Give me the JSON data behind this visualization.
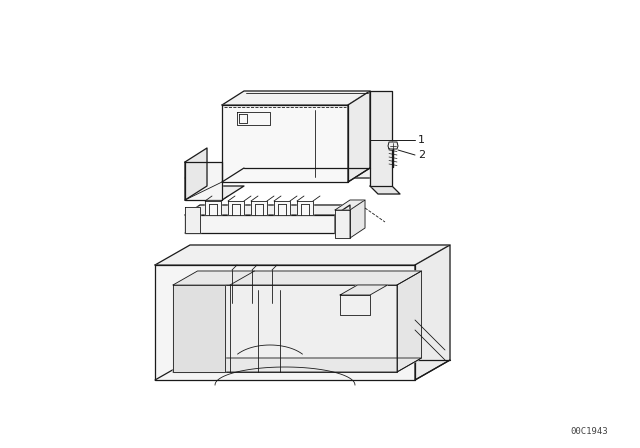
{
  "background_color": "#ffffff",
  "line_color": "#1a1a1a",
  "catalog_number": "00C1943",
  "catalog_number_color": "#444444",
  "label_1": "1",
  "label_2": "2",
  "fig_width": 6.4,
  "fig_height": 4.48,
  "dpi": 100
}
